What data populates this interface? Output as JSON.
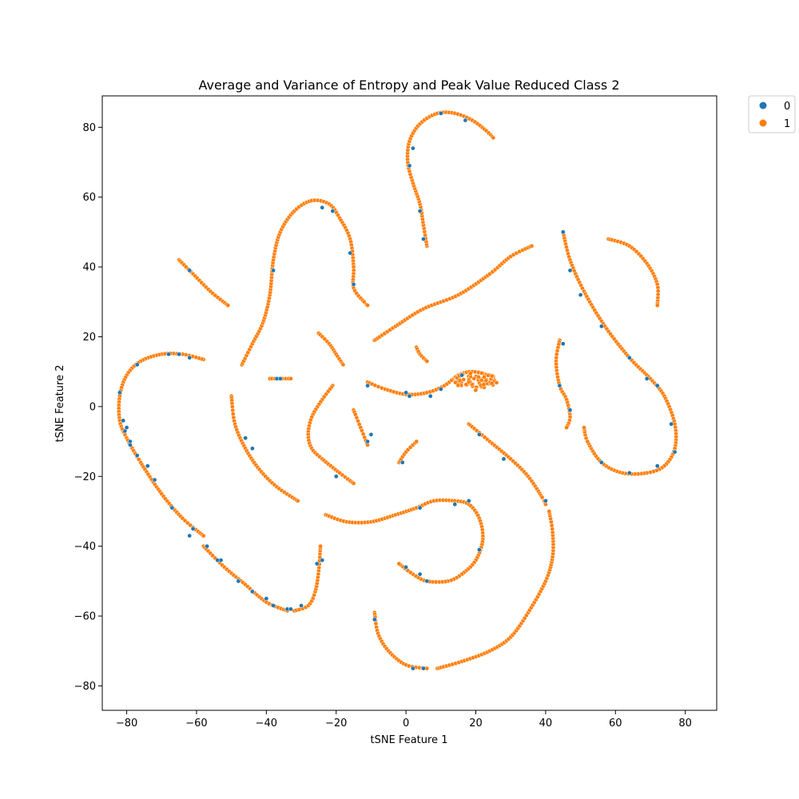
{
  "chart_data": {
    "type": "scatter",
    "title": "Average and Variance of Entropy and Peak Value Reduced Class 2",
    "xlabel": "tSNE Feature 1",
    "ylabel": "tSNE Feature 2",
    "xlim": [
      -87,
      89
    ],
    "ylim": [
      -87,
      89
    ],
    "xticks": [
      -80,
      -60,
      -40,
      -20,
      0,
      20,
      40,
      60,
      80
    ],
    "yticks": [
      -80,
      -60,
      -40,
      -20,
      0,
      20,
      40,
      60,
      80
    ],
    "grid": false,
    "legend_position": "outside-top-right",
    "series": [
      {
        "name": "0",
        "color": "#1f77b4",
        "points": [
          [
            -82,
            4
          ],
          [
            -80.5,
            -7
          ],
          [
            -79,
            -10
          ],
          [
            -77,
            -14
          ],
          [
            -74,
            -17
          ],
          [
            -72,
            -21
          ],
          [
            -67,
            -29
          ],
          [
            -61,
            -35
          ],
          [
            -57,
            -40
          ],
          [
            -54,
            -44
          ],
          [
            -48,
            -50
          ],
          [
            -44,
            -53
          ],
          [
            -40,
            -55
          ],
          [
            -38,
            -57
          ],
          [
            -34,
            -58
          ],
          [
            -30,
            -57
          ],
          [
            -25.5,
            -45
          ],
          [
            -77,
            12
          ],
          [
            -68,
            15
          ],
          [
            -65,
            15
          ],
          [
            -62,
            14
          ],
          [
            -44,
            -12
          ],
          [
            -46,
            -9
          ],
          [
            -38,
            39
          ],
          [
            -37,
            8
          ],
          [
            -24,
            57
          ],
          [
            -21,
            56
          ],
          [
            -16,
            44
          ],
          [
            -15,
            35
          ],
          [
            -20,
            -20
          ],
          [
            -11,
            6
          ],
          [
            0,
            4
          ],
          [
            1,
            3
          ],
          [
            7,
            3
          ],
          [
            10,
            5
          ],
          [
            16,
            9
          ],
          [
            1,
            69
          ],
          [
            2,
            74
          ],
          [
            4,
            56
          ],
          [
            5,
            48
          ],
          [
            10,
            84
          ],
          [
            17,
            82
          ],
          [
            -1,
            -16
          ],
          [
            -10,
            -8
          ],
          [
            -11,
            -10
          ],
          [
            0,
            -46
          ],
          [
            4,
            -48
          ],
          [
            6,
            -50
          ],
          [
            14,
            -28
          ],
          [
            18,
            -27
          ],
          [
            21,
            -41
          ],
          [
            4,
            -29
          ],
          [
            -9,
            -61
          ],
          [
            2,
            -75
          ],
          [
            5,
            -75
          ],
          [
            21,
            -8
          ],
          [
            28,
            -15
          ],
          [
            40,
            -27
          ],
          [
            45,
            50
          ],
          [
            47,
            39
          ],
          [
            50,
            32
          ],
          [
            56,
            23
          ],
          [
            64,
            14
          ],
          [
            69,
            8
          ],
          [
            72,
            6
          ],
          [
            76,
            -5
          ],
          [
            77,
            -13
          ],
          [
            72,
            -17
          ],
          [
            64,
            -19
          ],
          [
            56,
            -16
          ],
          [
            45,
            18
          ],
          [
            44,
            6
          ],
          [
            47,
            -1
          ],
          [
            -11,
            6
          ],
          [
            -36,
            8
          ],
          [
            -62,
            -37
          ],
          [
            -53,
            -44
          ],
          [
            -44,
            -53
          ],
          [
            -40,
            -55
          ],
          [
            -33,
            -58
          ],
          [
            -24,
            -44
          ],
          [
            -81,
            -4
          ],
          [
            -80,
            -6
          ],
          [
            -79,
            -11
          ],
          [
            -62,
            39
          ]
        ]
      },
      {
        "name": "1",
        "color": "#ff7f0e",
        "curves": [
          [
            [
              -58,
              13.5
            ],
            [
              -64,
              15
            ],
            [
              -70,
              15
            ],
            [
              -76,
              13
            ],
            [
              -80,
              9
            ],
            [
              -82,
              3
            ],
            [
              -82,
              -4
            ],
            [
              -80,
              -9
            ],
            [
              -76,
              -16
            ],
            [
              -70,
              -25
            ],
            [
              -64,
              -32
            ],
            [
              -58,
              -37
            ]
          ],
          [
            [
              -58,
              -40
            ],
            [
              -52,
              -46
            ],
            [
              -46,
              -51
            ],
            [
              -40,
              -56
            ],
            [
              -34,
              -58.5
            ]
          ],
          [
            [
              -32,
              -58.5
            ],
            [
              -28,
              -57
            ],
            [
              -26,
              -53
            ],
            [
              -25,
              -47
            ],
            [
              -24.5,
              -40
            ]
          ],
          [
            [
              -65,
              42
            ],
            [
              -61,
              38
            ],
            [
              -56,
              33
            ],
            [
              -51,
              29
            ]
          ],
          [
            [
              -47,
              12
            ],
            [
              -44,
              18
            ],
            [
              -41,
              24
            ],
            [
              -39,
              32
            ],
            [
              -38,
              42
            ],
            [
              -36,
              50
            ],
            [
              -32,
              56
            ],
            [
              -27,
              59
            ],
            [
              -22,
              58
            ],
            [
              -19,
              54
            ],
            [
              -16,
              48
            ],
            [
              -15,
              40
            ],
            [
              -15,
              34
            ],
            [
              -12,
              30
            ],
            [
              -11,
              29
            ]
          ],
          [
            [
              -39,
              8
            ],
            [
              -33,
              8
            ]
          ],
          [
            [
              -25,
              21
            ],
            [
              -22,
              18
            ],
            [
              -20,
              15
            ],
            [
              -18,
              12
            ]
          ],
          [
            [
              -50,
              3
            ],
            [
              -49,
              -5
            ],
            [
              -46,
              -12
            ],
            [
              -42,
              -18
            ],
            [
              -37,
              -23
            ],
            [
              -31,
              -27
            ]
          ],
          [
            [
              -21,
              6
            ],
            [
              -24,
              2
            ],
            [
              -27,
              -3
            ],
            [
              -28,
              -8
            ],
            [
              -27,
              -12
            ],
            [
              -24,
              -15
            ],
            [
              -19,
              -19
            ],
            [
              -15,
              -22
            ]
          ],
          [
            [
              -15,
              -1
            ],
            [
              -13,
              -6
            ],
            [
              -11,
              -11
            ]
          ],
          [
            [
              -11,
              7
            ],
            [
              -6,
              5
            ],
            [
              0,
              3.5
            ],
            [
              6,
              4
            ],
            [
              11,
              6
            ],
            [
              15,
              9
            ],
            [
              19,
              10
            ],
            [
              24,
              9
            ]
          ],
          [
            [
              -9,
              19
            ],
            [
              -3,
              23
            ],
            [
              5,
              28
            ],
            [
              15,
              32
            ],
            [
              24,
              38
            ],
            [
              30,
              43
            ],
            [
              36,
              46
            ]
          ],
          [
            [
              3,
              17
            ],
            [
              4,
              15
            ],
            [
              6,
              13
            ]
          ],
          [
            [
              6,
              46
            ],
            [
              5,
              52
            ],
            [
              4,
              58
            ],
            [
              2,
              64
            ],
            [
              0.5,
              70
            ],
            [
              1,
              76
            ],
            [
              4,
              81
            ],
            [
              9,
              84
            ],
            [
              14,
              84
            ],
            [
              19,
              82
            ],
            [
              23,
              79
            ],
            [
              25,
              77
            ]
          ],
          [
            [
              -2,
              -16
            ],
            [
              0,
              -13
            ],
            [
              3,
              -10
            ]
          ],
          [
            [
              -23,
              -31
            ],
            [
              -17,
              -33
            ],
            [
              -10,
              -33
            ],
            [
              -3,
              -31
            ],
            [
              3,
              -29
            ],
            [
              8,
              -27
            ],
            [
              14,
              -27
            ],
            [
              18,
              -28
            ],
            [
              21,
              -32
            ],
            [
              22,
              -38
            ],
            [
              20,
              -44
            ],
            [
              16,
              -48
            ],
            [
              12,
              -50
            ],
            [
              6,
              -50
            ],
            [
              2,
              -48
            ],
            [
              -2,
              -45
            ]
          ],
          [
            [
              -9,
              -59
            ],
            [
              -8,
              -65
            ],
            [
              -5,
              -70
            ],
            [
              0,
              -74
            ],
            [
              6,
              -75
            ]
          ],
          [
            [
              9,
              -75
            ],
            [
              16,
              -73
            ],
            [
              24,
              -70
            ],
            [
              30,
              -66
            ],
            [
              35,
              -59
            ],
            [
              40,
              -50
            ],
            [
              42,
              -43
            ],
            [
              42,
              -36
            ],
            [
              41,
              -30
            ]
          ],
          [
            [
              18,
              -5
            ],
            [
              24,
              -10
            ],
            [
              30,
              -15
            ],
            [
              35,
              -20
            ],
            [
              39,
              -26
            ],
            [
              40,
              -28
            ]
          ],
          [
            [
              45,
              50
            ],
            [
              47,
              42
            ],
            [
              51,
              33
            ],
            [
              57,
              23
            ],
            [
              64,
              14
            ],
            [
              70,
              8
            ],
            [
              74,
              3
            ],
            [
              77,
              -5
            ],
            [
              77,
              -12
            ],
            [
              74,
              -17
            ],
            [
              69,
              -19
            ],
            [
              62,
              -19
            ],
            [
              56,
              -16
            ],
            [
              52,
              -10
            ],
            [
              51,
              -6
            ]
          ],
          [
            [
              58,
              48
            ],
            [
              64,
              46
            ],
            [
              69,
              41
            ],
            [
              72,
              35
            ],
            [
              72,
              29
            ]
          ],
          [
            [
              44,
              19
            ],
            [
              43,
              13
            ],
            [
              44,
              6
            ],
            [
              46,
              2
            ],
            [
              47,
              -3
            ],
            [
              46,
              -6
            ]
          ]
        ],
        "blob": {
          "center": [
            20,
            7.5
          ],
          "spread": [
            6,
            3
          ]
        }
      }
    ]
  }
}
